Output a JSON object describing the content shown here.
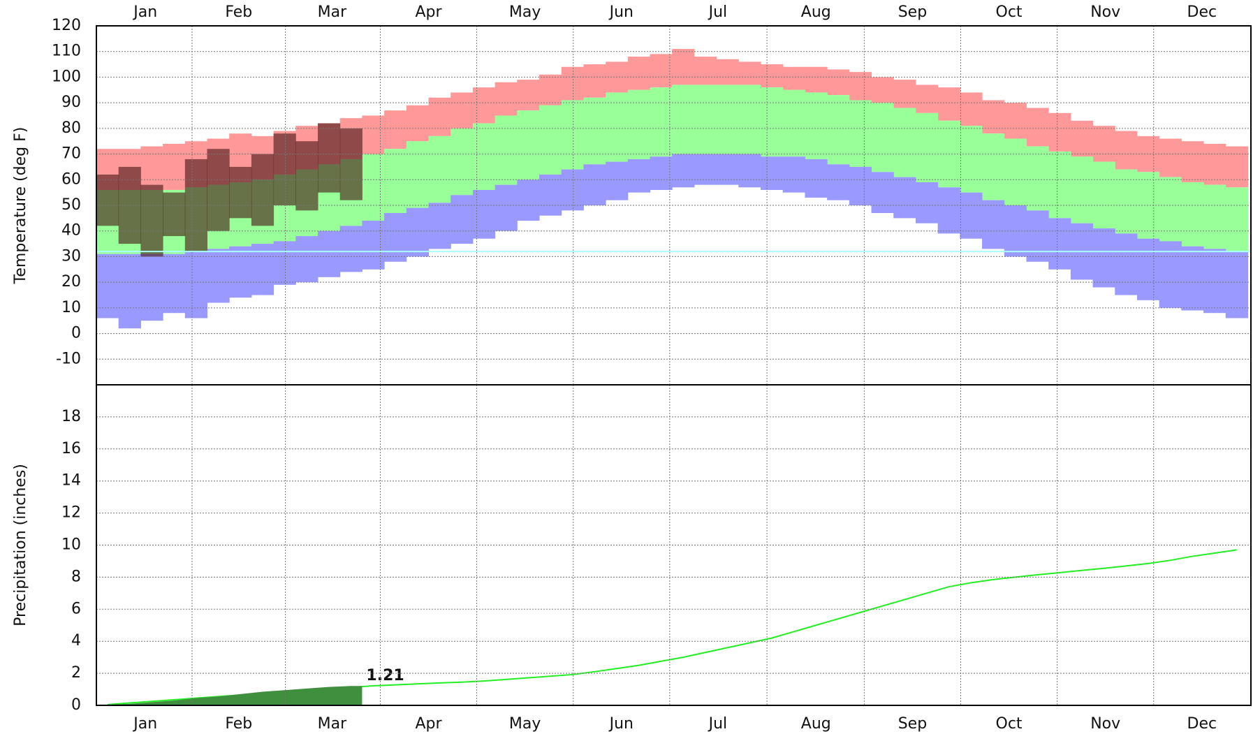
{
  "chart_data": [
    {
      "type": "bar",
      "y_label": "Temperature (deg F)",
      "xlim": [
        0,
        365
      ],
      "xticks": [
        {
          "value": 15.5,
          "label": "Jan"
        },
        {
          "value": 45,
          "label": "Feb"
        },
        {
          "value": 74.5,
          "label": "Mar"
        },
        {
          "value": 105,
          "label": "Apr"
        },
        {
          "value": 135.5,
          "label": "May"
        },
        {
          "value": 166,
          "label": "Jun"
        },
        {
          "value": 196.5,
          "label": "Jul"
        },
        {
          "value": 227.5,
          "label": "Aug"
        },
        {
          "value": 258,
          "label": "Sep"
        },
        {
          "value": 288.5,
          "label": "Oct"
        },
        {
          "value": 319,
          "label": "Nov"
        },
        {
          "value": 349.5,
          "label": "Dec"
        }
      ],
      "ylim": [
        -20,
        120
      ],
      "yticks": [
        -10,
        0,
        10,
        20,
        30,
        40,
        50,
        60,
        70,
        80,
        90,
        100,
        110,
        120
      ],
      "grid": true,
      "reference_line": 32,
      "reference_color": "#aaffff",
      "x": [
        3.5,
        10.5,
        17.5,
        24.5,
        31.5,
        38.5,
        45.5,
        52.5,
        59.5,
        66.5,
        73.5,
        80.5,
        87.5,
        94.5,
        101.5,
        108.5,
        115.5,
        122.5,
        129.5,
        136.5,
        143.5,
        150.5,
        157.5,
        164.5,
        171.5,
        178.5,
        185.5,
        192.5,
        199.5,
        206.5,
        213.5,
        220.5,
        227.5,
        234.5,
        241.5,
        248.5,
        255.5,
        262.5,
        269.5,
        276.5,
        283.5,
        290.5,
        297.5,
        304.5,
        311.5,
        318.5,
        325.5,
        332.5,
        339.5,
        346.5,
        353.5,
        360.5
      ],
      "series": [
        {
          "color": "#ff9999",
          "values": [
            72,
            72,
            73,
            74,
            75,
            76,
            78,
            77,
            79,
            81,
            82,
            84,
            85,
            87,
            89,
            92,
            94,
            96,
            98,
            99,
            101,
            104,
            105,
            106,
            108,
            109,
            111,
            108,
            107,
            106,
            105,
            104,
            104,
            103,
            102,
            100,
            99,
            97,
            96,
            94,
            91,
            90,
            88,
            86,
            83,
            81,
            79,
            77,
            76,
            75,
            74,
            73
          ]
        },
        {
          "color": "#99ff99",
          "values": [
            56,
            56,
            56,
            56,
            57,
            58,
            59,
            60,
            62,
            64,
            66,
            68,
            70,
            72,
            75,
            77,
            80,
            82,
            85,
            87,
            89,
            91,
            92,
            94,
            95,
            96,
            97,
            97,
            97,
            97,
            96,
            95,
            94,
            93,
            91,
            90,
            88,
            86,
            83,
            81,
            78,
            76,
            73,
            71,
            69,
            67,
            64,
            63,
            61,
            59,
            58,
            57
          ]
        },
        {
          "color": "#9999ff",
          "values": [
            31,
            31,
            31,
            31,
            32,
            33,
            34,
            35,
            36,
            38,
            40,
            42,
            44,
            47,
            49,
            51,
            54,
            56,
            58,
            60,
            62,
            64,
            66,
            67,
            68,
            69,
            70,
            70,
            70,
            70,
            69,
            69,
            68,
            66,
            65,
            63,
            61,
            59,
            57,
            55,
            52,
            50,
            48,
            45,
            43,
            41,
            39,
            37,
            36,
            34,
            33,
            32
          ]
        },
        {
          "color": "#9999ff",
          "values": [
            6,
            2,
            5,
            8,
            6,
            12,
            14,
            15,
            19,
            20,
            22,
            24,
            25,
            28,
            30,
            33,
            35,
            37,
            40,
            44,
            46,
            48,
            50,
            52,
            55,
            56,
            57,
            58,
            58,
            57,
            56,
            55,
            53,
            52,
            50,
            47,
            45,
            43,
            39,
            37,
            33,
            30,
            28,
            25,
            21,
            18,
            15,
            13,
            10,
            9,
            8,
            6
          ]
        },
        {
          "color": "rgba(70,20,20,0.6)",
          "values": [
            62,
            65,
            58,
            55,
            68,
            72,
            65,
            70,
            78,
            75,
            82,
            80,
            null,
            null,
            null,
            null,
            null,
            null,
            null,
            null,
            null,
            null,
            null,
            null,
            null,
            null,
            null,
            null,
            null,
            null,
            null,
            null,
            null,
            null,
            null,
            null,
            null,
            null,
            null,
            null,
            null,
            null,
            null,
            null,
            null,
            null,
            null,
            null,
            null,
            null,
            null,
            null
          ]
        },
        {
          "color": "rgba(70,20,20,0.6)",
          "values": [
            42,
            35,
            30,
            38,
            32,
            40,
            45,
            42,
            50,
            48,
            55,
            52,
            null,
            null,
            null,
            null,
            null,
            null,
            null,
            null,
            null,
            null,
            null,
            null,
            null,
            null,
            null,
            null,
            null,
            null,
            null,
            null,
            null,
            null,
            null,
            null,
            null,
            null,
            null,
            null,
            null,
            null,
            null,
            null,
            null,
            null,
            null,
            null,
            null,
            null,
            null,
            null
          ]
        }
      ]
    },
    {
      "type": "line",
      "y_label": "Precipitation (inches)",
      "xlim": [
        0,
        365
      ],
      "xticks": [
        {
          "value": 15.5,
          "label": "Jan"
        },
        {
          "value": 45,
          "label": "Feb"
        },
        {
          "value": 74.5,
          "label": "Mar"
        },
        {
          "value": 105,
          "label": "Apr"
        },
        {
          "value": 135.5,
          "label": "May"
        },
        {
          "value": 166,
          "label": "Jun"
        },
        {
          "value": 196.5,
          "label": "Jul"
        },
        {
          "value": 227.5,
          "label": "Aug"
        },
        {
          "value": 258,
          "label": "Sep"
        },
        {
          "value": 288.5,
          "label": "Oct"
        },
        {
          "value": 319,
          "label": "Nov"
        },
        {
          "value": 349.5,
          "label": "Dec"
        }
      ],
      "ylim": [
        0,
        20
      ],
      "yticks": [
        0,
        2,
        4,
        6,
        8,
        10,
        12,
        14,
        16,
        18
      ],
      "grid": true,
      "x": [
        3.5,
        10.5,
        17.5,
        24.5,
        31.5,
        38.5,
        45.5,
        52.5,
        59.5,
        66.5,
        73.5,
        80.5,
        87.5,
        94.5,
        101.5,
        108.5,
        115.5,
        122.5,
        129.5,
        136.5,
        143.5,
        150.5,
        157.5,
        164.5,
        171.5,
        178.5,
        185.5,
        192.5,
        199.5,
        206.5,
        213.5,
        220.5,
        227.5,
        234.5,
        241.5,
        248.5,
        255.5,
        262.5,
        269.5,
        276.5,
        283.5,
        290.5,
        297.5,
        304.5,
        311.5,
        318.5,
        325.5,
        332.5,
        339.5,
        346.5,
        353.5,
        360.5
      ],
      "series": [
        {
          "color": "#22ee22",
          "fill": false,
          "values": [
            0.05,
            0.15,
            0.25,
            0.35,
            0.45,
            0.55,
            0.65,
            0.75,
            0.85,
            0.94,
            1.03,
            1.12,
            1.22,
            1.28,
            1.34,
            1.4,
            1.45,
            1.52,
            1.62,
            1.72,
            1.82,
            1.92,
            2.1,
            2.3,
            2.5,
            2.75,
            3.0,
            3.3,
            3.6,
            3.9,
            4.2,
            4.6,
            5.0,
            5.4,
            5.8,
            6.2,
            6.6,
            7.0,
            7.4,
            7.65,
            7.85,
            8.0,
            8.15,
            8.28,
            8.42,
            8.55,
            8.7,
            8.85,
            9.05,
            9.3,
            9.5,
            9.7
          ]
        },
        {
          "color": "#3f8f3f",
          "fill": true,
          "values": [
            0.05,
            0.1,
            0.2,
            0.3,
            0.45,
            0.55,
            0.7,
            0.85,
            0.95,
            1.05,
            1.15,
            1.21,
            null,
            null,
            null,
            null,
            null,
            null,
            null,
            null,
            null,
            null,
            null,
            null,
            null,
            null,
            null,
            null,
            null,
            null,
            null,
            null,
            null,
            null,
            null,
            null,
            null,
            null,
            null,
            null,
            null,
            null,
            null,
            null,
            null,
            null,
            null,
            null,
            null,
            null,
            null,
            null
          ]
        }
      ]
    }
  ]
}
